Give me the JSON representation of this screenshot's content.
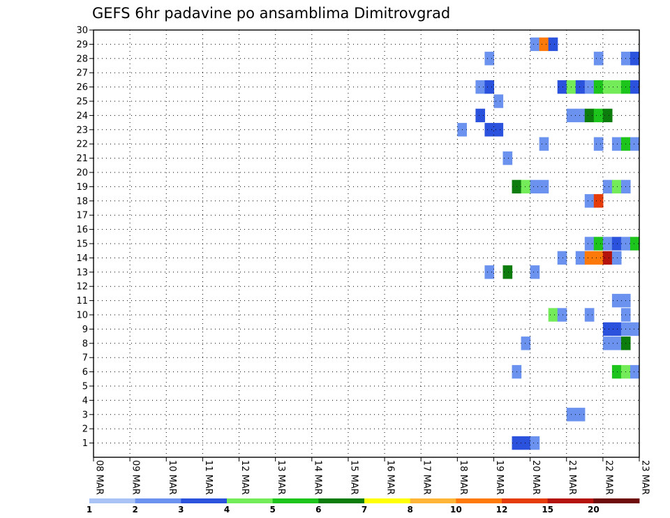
{
  "chart_data": {
    "type": "heatmap",
    "title": "GEFS 6hr padavine po ansamblima Dimitrovgrad",
    "xlabel": "",
    "ylabel": "",
    "x_ticks": [
      "08 MAR",
      "09 MAR",
      "10 MAR",
      "11 MAR",
      "12 MAR",
      "13 MAR",
      "14 MAR",
      "15 MAR",
      "16 MAR",
      "17 MAR",
      "18 MAR",
      "19 MAR",
      "20 MAR",
      "21 MAR",
      "22 MAR",
      "23 MAR"
    ],
    "x_range_days": [
      0,
      15
    ],
    "y_ticks": [
      1,
      2,
      3,
      4,
      5,
      6,
      7,
      8,
      9,
      10,
      11,
      12,
      13,
      14,
      15,
      16,
      17,
      18,
      19,
      20,
      21,
      22,
      23,
      24,
      25,
      26,
      27,
      28,
      29,
      30
    ],
    "y_range": [
      0,
      30
    ],
    "legend": {
      "placement": "bottom",
      "labels": [
        "1",
        "2",
        "3",
        "4",
        "5",
        "6",
        "7",
        "8",
        "10",
        "12",
        "15",
        "20"
      ],
      "colors": [
        "#a9c3f5",
        "#6a92ee",
        "#2a52dc",
        "#74ec5a",
        "#1cc41c",
        "#0c7c0c",
        "#ffff00",
        "#fdb437",
        "#fd7a0a",
        "#e63c0a",
        "#b4140c",
        "#6e0a0a"
      ]
    },
    "cells": [
      [
        29,
        12.0,
        1
      ],
      [
        29,
        12.25,
        8
      ],
      [
        29,
        12.5,
        2
      ],
      [
        28,
        10.75,
        1
      ],
      [
        28,
        13.75,
        1
      ],
      [
        28,
        14.5,
        1
      ],
      [
        28,
        14.75,
        2
      ],
      [
        26,
        10.5,
        1
      ],
      [
        26,
        10.75,
        2
      ],
      [
        26,
        12.75,
        2
      ],
      [
        26,
        13.0,
        3
      ],
      [
        26,
        13.25,
        2
      ],
      [
        26,
        13.5,
        1
      ],
      [
        26,
        13.75,
        4
      ],
      [
        26,
        14.0,
        3
      ],
      [
        26,
        14.25,
        3
      ],
      [
        26,
        14.5,
        4
      ],
      [
        26,
        14.75,
        2
      ],
      [
        25,
        11.0,
        1
      ],
      [
        24,
        10.5,
        2
      ],
      [
        24,
        13.0,
        1
      ],
      [
        24,
        13.25,
        1
      ],
      [
        24,
        13.5,
        5
      ],
      [
        24,
        13.75,
        4
      ],
      [
        24,
        14.0,
        5
      ],
      [
        23,
        10.0,
        1
      ],
      [
        23,
        10.75,
        2
      ],
      [
        23,
        11.0,
        2
      ],
      [
        22,
        12.25,
        1
      ],
      [
        22,
        13.75,
        1
      ],
      [
        22,
        14.25,
        1
      ],
      [
        22,
        14.5,
        4
      ],
      [
        22,
        14.75,
        1
      ],
      [
        21,
        11.25,
        1
      ],
      [
        19,
        11.5,
        5
      ],
      [
        19,
        11.75,
        3
      ],
      [
        19,
        12.0,
        1
      ],
      [
        19,
        12.25,
        1
      ],
      [
        19,
        14.0,
        1
      ],
      [
        19,
        14.25,
        3
      ],
      [
        19,
        14.5,
        1
      ],
      [
        18,
        13.5,
        1
      ],
      [
        18,
        13.75,
        9
      ],
      [
        15,
        13.5,
        1
      ],
      [
        15,
        13.75,
        4
      ],
      [
        15,
        14.0,
        1
      ],
      [
        15,
        14.25,
        2
      ],
      [
        15,
        14.5,
        1
      ],
      [
        15,
        14.75,
        4
      ],
      [
        14,
        12.75,
        1
      ],
      [
        14,
        13.25,
        1
      ],
      [
        14,
        13.5,
        8
      ],
      [
        14,
        13.75,
        8
      ],
      [
        14,
        14.0,
        10
      ],
      [
        14,
        14.25,
        1
      ],
      [
        13,
        10.75,
        1
      ],
      [
        13,
        11.25,
        5
      ],
      [
        13,
        12.0,
        1
      ],
      [
        11,
        14.25,
        1
      ],
      [
        11,
        14.5,
        1
      ],
      [
        10,
        12.5,
        3
      ],
      [
        10,
        12.75,
        1
      ],
      [
        10,
        13.5,
        1
      ],
      [
        10,
        14.5,
        1
      ],
      [
        9,
        14.0,
        2
      ],
      [
        9,
        14.25,
        2
      ],
      [
        9,
        14.5,
        1
      ],
      [
        9,
        14.75,
        1
      ],
      [
        8,
        11.75,
        1
      ],
      [
        8,
        14.0,
        1
      ],
      [
        8,
        14.25,
        1
      ],
      [
        8,
        14.5,
        5
      ],
      [
        6,
        11.5,
        1
      ],
      [
        6,
        14.25,
        4
      ],
      [
        6,
        14.5,
        3
      ],
      [
        6,
        14.75,
        1
      ],
      [
        3,
        13.0,
        1
      ],
      [
        3,
        13.25,
        1
      ],
      [
        1,
        11.5,
        2
      ],
      [
        1,
        11.75,
        2
      ],
      [
        1,
        12.0,
        1
      ]
    ]
  }
}
